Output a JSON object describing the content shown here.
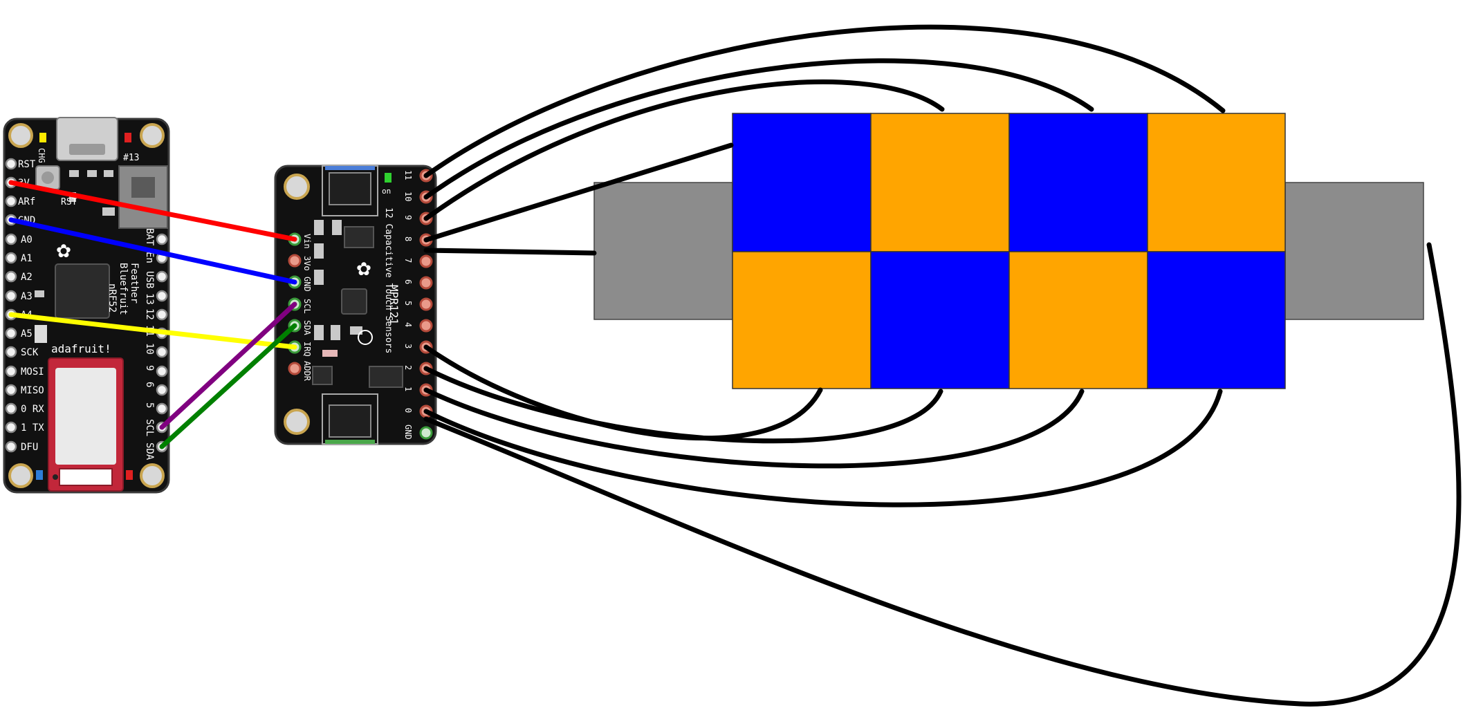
{
  "feather": {
    "left_labels": [
      "RST",
      "3V",
      "ARf",
      "GND",
      "A0",
      "A1",
      "A2",
      "A3",
      "A4",
      "A5",
      "SCK",
      "MOSI",
      "MISO",
      "0 RX",
      "1 TX",
      "DFU"
    ],
    "right_labels": [
      "BAT",
      "En",
      "USB",
      "13",
      "12",
      "11",
      "10",
      "9",
      "6",
      "5",
      "SCL",
      "SDA"
    ],
    "board_text": [
      "Feather",
      "Bluefruit",
      "nRF52",
      "adafruit!",
      "#13",
      "CHG",
      "RST"
    ]
  },
  "mpr121": {
    "title": "MPR121",
    "subtitle": "12 Capacitive Touch Sensors",
    "left_pins": [
      "Vin",
      "3Vo",
      "GND",
      "SCL",
      "SDA",
      "IRQ",
      "ADDR"
    ],
    "right_pins": [
      "11",
      "10",
      "9",
      "8",
      "7",
      "6",
      "5",
      "4",
      "3",
      "2",
      "1",
      "0",
      "GND"
    ],
    "badge": "on"
  },
  "colors": {
    "blue_tile": "#0000ff",
    "orange_tile": "#ffa500",
    "gray_end": "#8c8c8c",
    "wire_red": "#ff0000",
    "wire_blue": "#0000ff",
    "wire_yellow": "#ffff00",
    "wire_purple": "#800080",
    "wire_green": "#008000",
    "wire_black": "#000000"
  },
  "grid": {
    "rows": [
      [
        "blue",
        "orange",
        "blue",
        "orange"
      ],
      [
        "orange",
        "blue",
        "orange",
        "blue"
      ]
    ]
  }
}
